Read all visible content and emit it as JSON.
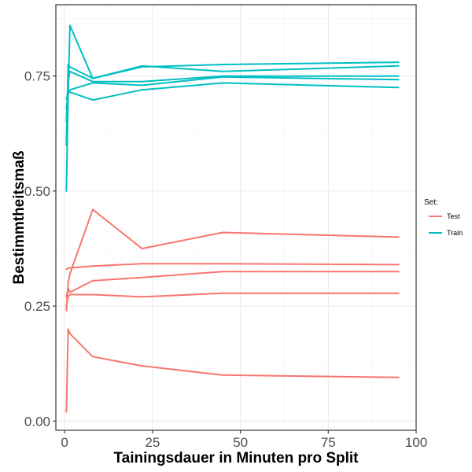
{
  "chart_data": {
    "type": "line",
    "title": "",
    "xlabel": "Tainingsdauer in Minuten pro Split",
    "ylabel": "Bestimmtheitsmaß",
    "xlim": [
      -2.5,
      100
    ],
    "ylim": [
      -0.02,
      0.905
    ],
    "x_ticks": [
      0,
      25,
      50,
      75,
      100
    ],
    "x_tick_labels": [
      "0",
      "25",
      "50",
      "75",
      "100"
    ],
    "y_ticks": [
      0.0,
      0.25,
      0.5,
      0.75
    ],
    "y_tick_labels": [
      "0.00",
      "0.25",
      "0.50",
      "0.75"
    ],
    "x_minor": [
      12.5,
      37.5,
      62.5,
      87.5
    ],
    "y_minor": [
      0.125,
      0.375,
      0.625,
      0.875
    ],
    "grid": true,
    "legend": {
      "title": "Set:",
      "position": "right",
      "entries": [
        {
          "label": "Test",
          "color": "#F8766D"
        },
        {
          "label": "Train",
          "color": "#00BFC4"
        }
      ]
    },
    "x": [
      0.5,
      1,
      1.5,
      8,
      22,
      45,
      95
    ],
    "series": [
      {
        "name": "Test",
        "group": "Test",
        "color": "#F8766D",
        "values": [
          0.02,
          0.2,
          0.19,
          0.14,
          0.12,
          0.1,
          0.095
        ]
      },
      {
        "name": "Test",
        "group": "Test",
        "color": "#F8766D",
        "values": [
          0.25,
          0.27,
          0.275,
          0.275,
          0.27,
          0.278,
          0.278
        ]
      },
      {
        "name": "Test",
        "group": "Test",
        "color": "#F8766D",
        "values": [
          0.27,
          0.29,
          0.28,
          0.305,
          0.312,
          0.325,
          0.325
        ]
      },
      {
        "name": "Test",
        "group": "Test",
        "color": "#F8766D",
        "values": [
          0.33,
          0.332,
          0.333,
          0.337,
          0.342,
          0.342,
          0.34
        ]
      },
      {
        "name": "Test",
        "group": "Test",
        "color": "#F8766D",
        "values": [
          0.24,
          0.3,
          0.32,
          0.46,
          0.375,
          0.41,
          0.4
        ]
      },
      {
        "name": "Train",
        "group": "Train",
        "color": "#00BFC4",
        "values": [
          0.5,
          0.71,
          0.86,
          0.745,
          0.77,
          0.775,
          0.78
        ]
      },
      {
        "name": "Train",
        "group": "Train",
        "color": "#00BFC4",
        "values": [
          0.6,
          0.775,
          0.77,
          0.745,
          0.772,
          0.76,
          0.772
        ]
      },
      {
        "name": "Train",
        "group": "Train",
        "color": "#00BFC4",
        "values": [
          0.65,
          0.74,
          0.76,
          0.738,
          0.738,
          0.75,
          0.75
        ]
      },
      {
        "name": "Train",
        "group": "Train",
        "color": "#00BFC4",
        "values": [
          0.68,
          0.71,
          0.72,
          0.735,
          0.73,
          0.748,
          0.742
        ]
      },
      {
        "name": "Train",
        "group": "Train",
        "color": "#00BFC4",
        "values": [
          0.7,
          0.715,
          0.715,
          0.698,
          0.72,
          0.735,
          0.725
        ]
      }
    ]
  }
}
